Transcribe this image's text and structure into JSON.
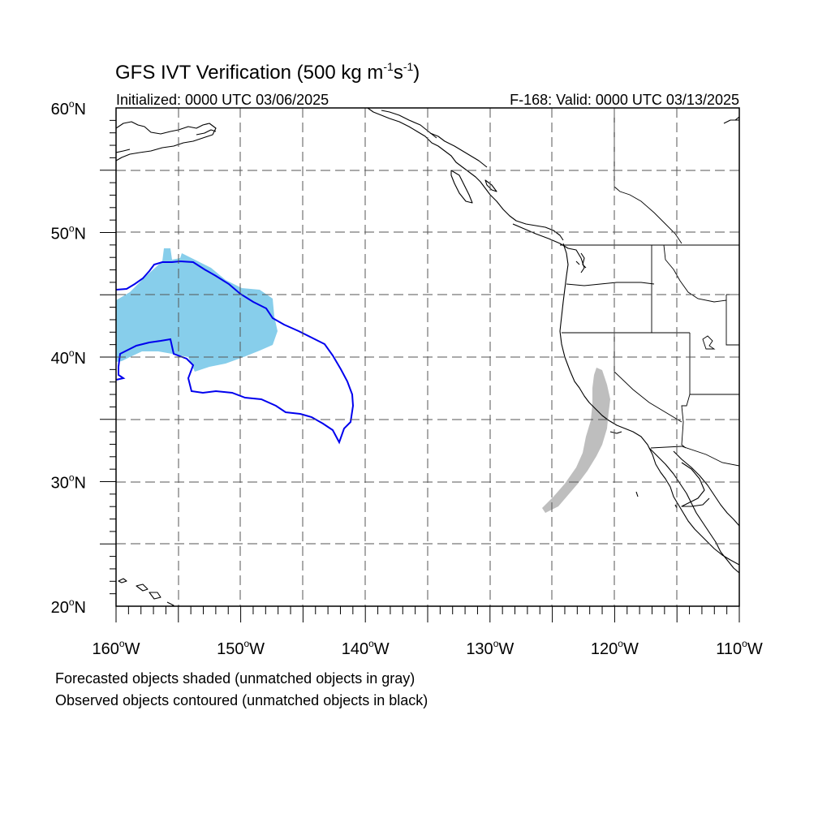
{
  "title": {
    "main": "GFS IVT Verification (500 kg m",
    "sup1": "-1",
    "mid": "s",
    "sup2": "-1",
    "end": ")"
  },
  "initialized": "Initialized: 0000 UTC 03/06/2025",
  "valid": "F-168: Valid: 0000 UTC 03/13/2025",
  "map": {
    "lon_range": [
      -160,
      -110
    ],
    "lat_range": [
      20,
      60
    ],
    "lat_labels": [
      {
        "deg": "20",
        "suffix": "N",
        "lat": 20
      },
      {
        "deg": "30",
        "suffix": "N",
        "lat": 30
      },
      {
        "deg": "40",
        "suffix": "N",
        "lat": 40
      },
      {
        "deg": "50",
        "suffix": "N",
        "lat": 50
      },
      {
        "deg": "60",
        "suffix": "N",
        "lat": 60
      }
    ],
    "lon_labels": [
      {
        "deg": "160",
        "suffix": "W",
        "lon": -160
      },
      {
        "deg": "150",
        "suffix": "W",
        "lon": -150
      },
      {
        "deg": "140",
        "suffix": "W",
        "lon": -140
      },
      {
        "deg": "130",
        "suffix": "W",
        "lon": -130
      },
      {
        "deg": "120",
        "suffix": "W",
        "lon": -120
      },
      {
        "deg": "110",
        "suffix": "W",
        "lon": -110
      }
    ],
    "grid_style": "dashed",
    "forecast_matched_color": "#87ceeb",
    "forecast_unmatched_color": "#bebebe",
    "observed_matched_color": "#0000ee",
    "observed_unmatched_color": "#000000"
  },
  "captions": {
    "line1": "Forecasted objects shaded (unmatched objects in gray)",
    "line2": "Observed objects contoured (unmatched objects in black)"
  }
}
